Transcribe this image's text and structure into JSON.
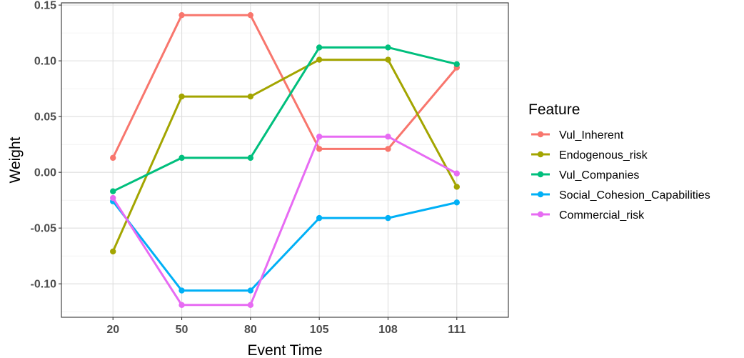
{
  "chart_data": {
    "type": "line",
    "categories": [
      "20",
      "50",
      "80",
      "105",
      "108",
      "111"
    ],
    "xlabel": "Event Time",
    "ylabel": "Weight",
    "ylim": [
      -0.13,
      0.152
    ],
    "yticks": [
      -0.1,
      -0.05,
      0.0,
      0.05,
      0.1,
      0.15
    ],
    "ytick_labels": [
      "-0.10",
      "-0.05",
      "0.00",
      "0.05",
      "0.10",
      "0.15"
    ],
    "grid": true,
    "legend": {
      "title": "Feature",
      "position": "right"
    },
    "series": [
      {
        "name": "Vul_Inherent",
        "color": "#F8766D",
        "values": [
          0.013,
          0.141,
          0.141,
          0.021,
          0.021,
          0.094
        ]
      },
      {
        "name": "Endogenous_risk",
        "color": "#A3A500",
        "values": [
          -0.071,
          0.068,
          0.068,
          0.101,
          0.101,
          -0.013
        ]
      },
      {
        "name": "Vul_Companies",
        "color": "#00BF7D",
        "values": [
          -0.017,
          0.013,
          0.013,
          0.112,
          0.112,
          0.097
        ]
      },
      {
        "name": "Social_Cohesion_Capabilities",
        "color": "#00B0F6",
        "values": [
          -0.026,
          -0.106,
          -0.106,
          -0.041,
          -0.041,
          -0.027
        ]
      },
      {
        "name": "Commercial_risk",
        "color": "#E76BF3",
        "values": [
          -0.023,
          -0.119,
          -0.119,
          0.032,
          0.032,
          -0.001
        ]
      }
    ]
  }
}
